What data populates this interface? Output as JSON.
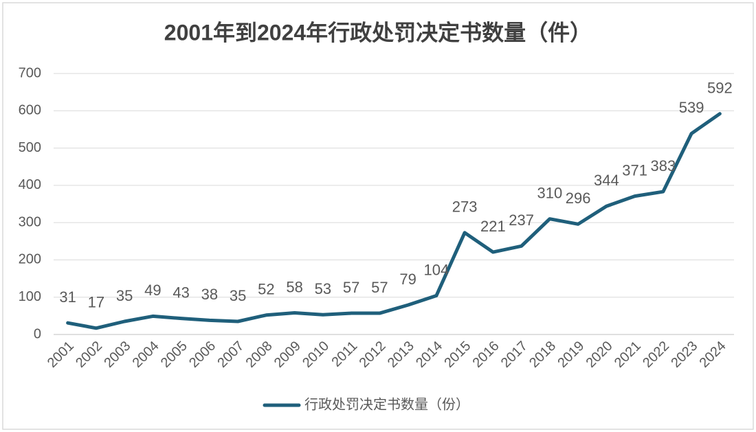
{
  "chart_data": {
    "type": "line",
    "title": "2001年到2024年行政处罚决定书数量（件）",
    "categories": [
      "2001",
      "2002",
      "2003",
      "2004",
      "2005",
      "2006",
      "2007",
      "2008",
      "2009",
      "2010",
      "2011",
      "2012",
      "2013",
      "2014",
      "2015",
      "2016",
      "2017",
      "2018",
      "2019",
      "2020",
      "2021",
      "2022",
      "2023",
      "2024"
    ],
    "series": [
      {
        "name": "行政处罚决定书数量（份）",
        "color": "#1f5f7b",
        "values": [
          31,
          17,
          35,
          49,
          43,
          38,
          35,
          52,
          58,
          53,
          57,
          57,
          79,
          104,
          273,
          221,
          237,
          310,
          296,
          344,
          371,
          383,
          539,
          592
        ]
      }
    ],
    "ylim": [
      0,
      700
    ],
    "yticks": [
      0,
      100,
      200,
      300,
      400,
      500,
      600,
      700
    ],
    "grid": true,
    "legend": "bottom"
  }
}
